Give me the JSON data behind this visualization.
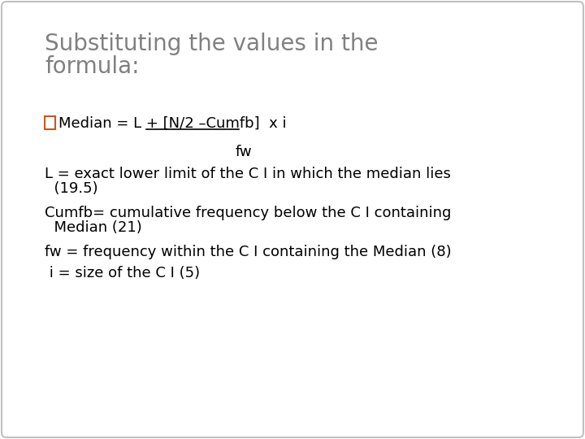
{
  "title_line1": "Substituting the values in the",
  "title_line2": "formula:",
  "title_color": "#808080",
  "title_fontsize": 20,
  "background_color": "#ffffff",
  "box_edge_color": "#c0c0c0",
  "bullet_color": "#cc5522",
  "median_text": "Median = L + [N/2 –Cumfb]  x i",
  "fw_text": "fw",
  "line1": "L = exact lower limit of the C I in which the median lies",
  "line1b": "  (19.5)",
  "line2": "Cumfb= cumulative frequency below the C I containing",
  "line2b": "  Median (21)",
  "line3": "fw = frequency within the C I containing the Median (8)",
  "line4": " i = size of the C I (5)",
  "body_fontsize": 13,
  "figwidth": 7.2,
  "figheight": 5.4,
  "dpi": 100
}
